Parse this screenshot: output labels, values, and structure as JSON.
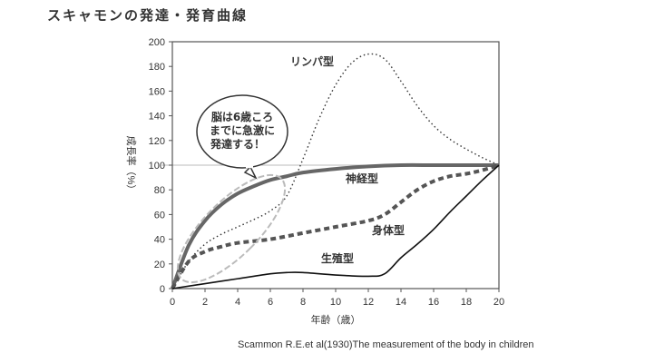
{
  "chart_data": {
    "type": "line",
    "title": "スキャモンの発達・発育曲線",
    "xlabel": "年齢（歳）",
    "ylabel": "成長率（%）",
    "xlim": [
      0,
      20
    ],
    "ylim": [
      0,
      200
    ],
    "xticks": [
      0,
      2,
      4,
      6,
      8,
      10,
      12,
      14,
      16,
      18,
      20
    ],
    "yticks": [
      0,
      20,
      40,
      60,
      80,
      100,
      120,
      140,
      160,
      180,
      200
    ],
    "reference_line": 100,
    "series": [
      {
        "name": "リンパ型",
        "style": "dotted",
        "x": [
          0,
          1,
          2,
          3,
          4,
          5,
          6,
          7,
          8,
          9,
          10,
          11,
          12,
          13,
          14,
          15,
          16,
          17,
          18,
          19,
          20
        ],
        "y": [
          0,
          22,
          36,
          44,
          50,
          56,
          63,
          75,
          105,
          138,
          165,
          183,
          190,
          186,
          168,
          148,
          132,
          121,
          113,
          106,
          100
        ]
      },
      {
        "name": "神経型",
        "style": "thick-solid",
        "x": [
          0,
          1,
          2,
          3,
          4,
          5,
          6,
          7,
          8,
          10,
          12,
          14,
          16,
          18,
          20
        ],
        "y": [
          0,
          35,
          55,
          68,
          77,
          83,
          88,
          91,
          94,
          97,
          99,
          100,
          100,
          100,
          100
        ]
      },
      {
        "name": "身体型",
        "style": "dashed",
        "x": [
          0,
          1,
          2,
          3,
          4,
          6,
          8,
          10,
          12,
          13,
          14,
          15,
          16,
          17,
          18,
          19,
          20
        ],
        "y": [
          0,
          22,
          30,
          34,
          37,
          40,
          45,
          50,
          55,
          60,
          70,
          80,
          87,
          91,
          93,
          96,
          100
        ]
      },
      {
        "name": "生殖型",
        "style": "solid",
        "x": [
          0,
          2,
          4,
          6,
          7,
          8,
          10,
          12,
          13,
          14,
          15,
          16,
          17,
          18,
          19,
          20
        ],
        "y": [
          0,
          4,
          8,
          12,
          13,
          13,
          11,
          10,
          12,
          25,
          36,
          48,
          62,
          75,
          88,
          100
        ]
      }
    ],
    "annotation": "脳は6歳ころまでに急激に発達する！",
    "annotation_lines": [
      "脳は6歳ころ",
      "までに急激に",
      "発達する！"
    ],
    "source": "Scammon R.E.et al(1930)The measurement of the body in children"
  }
}
